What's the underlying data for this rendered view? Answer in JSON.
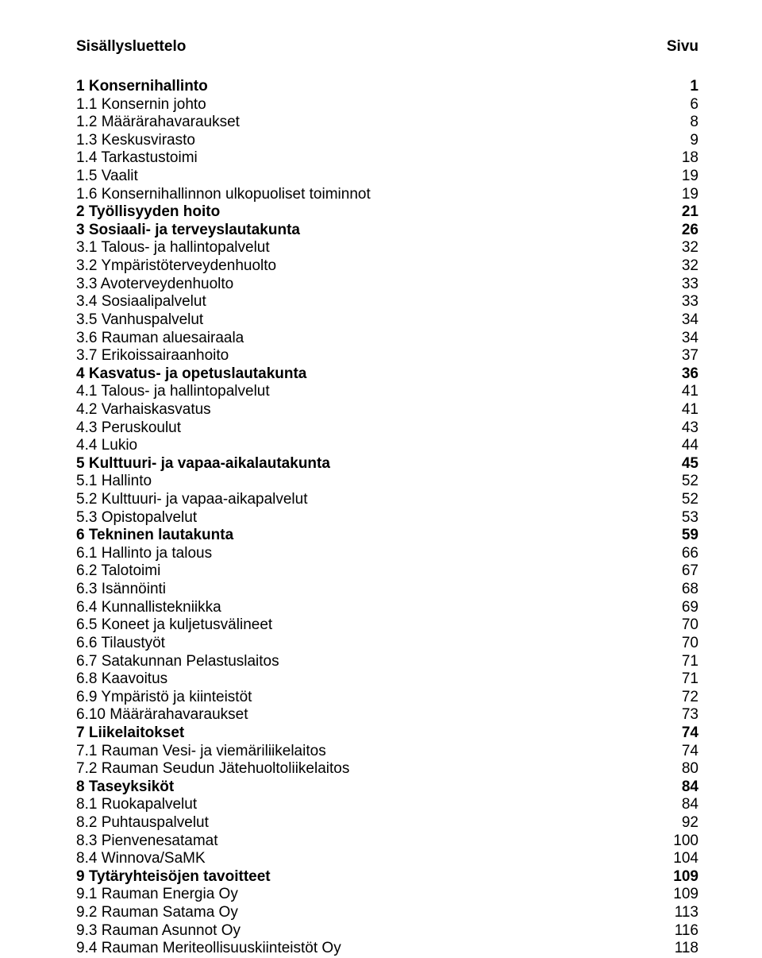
{
  "header": {
    "left": "Sisällysluettelo",
    "right": "Sivu"
  },
  "entries": [
    {
      "label": "1 Konsernihallinto",
      "page": "1",
      "bold": true
    },
    {
      "label": "1.1 Konsernin johto",
      "page": "6",
      "bold": false
    },
    {
      "label": "1.2 Määrärahavaraukset",
      "page": "8",
      "bold": false
    },
    {
      "label": "1.3 Keskusvirasto",
      "page": "9",
      "bold": false
    },
    {
      "label": "1.4 Tarkastustoimi",
      "page": "18",
      "bold": false
    },
    {
      "label": "1.5 Vaalit",
      "page": "19",
      "bold": false
    },
    {
      "label": "1.6 Konsernihallinnon ulkopuoliset toiminnot",
      "page": "19",
      "bold": false
    },
    {
      "label": "2 Työllisyyden hoito",
      "page": "21",
      "bold": true
    },
    {
      "label": "3 Sosiaali- ja terveyslautakunta",
      "page": "26",
      "bold": true
    },
    {
      "label": "3.1 Talous- ja hallintopalvelut",
      "page": "32",
      "bold": false
    },
    {
      "label": "3.2 Ympäristöterveydenhuolto",
      "page": "32",
      "bold": false
    },
    {
      "label": "3.3 Avoterveydenhuolto",
      "page": "33",
      "bold": false
    },
    {
      "label": "3.4 Sosiaalipalvelut",
      "page": "33",
      "bold": false
    },
    {
      "label": "3.5 Vanhuspalvelut",
      "page": "34",
      "bold": false
    },
    {
      "label": "3.6 Rauman aluesairaala",
      "page": "34",
      "bold": false
    },
    {
      "label": "3.7 Erikoissairaanhoito",
      "page": "37",
      "bold": false
    },
    {
      "label": "4 Kasvatus- ja opetuslautakunta",
      "page": "36",
      "bold": true
    },
    {
      "label": "4.1 Talous- ja hallintopalvelut",
      "page": "41",
      "bold": false
    },
    {
      "label": "4.2 Varhaiskasvatus",
      "page": "41",
      "bold": false
    },
    {
      "label": "4.3 Peruskoulut",
      "page": "43",
      "bold": false
    },
    {
      "label": "4.4 Lukio",
      "page": "44",
      "bold": false
    },
    {
      "label": "5 Kulttuuri- ja vapaa-aikalautakunta",
      "page": "45",
      "bold": true
    },
    {
      "label": "5.1 Hallinto",
      "page": "52",
      "bold": false
    },
    {
      "label": "5.2 Kulttuuri- ja vapaa-aikapalvelut",
      "page": "52",
      "bold": false
    },
    {
      "label": "5.3 Opistopalvelut",
      "page": "53",
      "bold": false
    },
    {
      "label": "6 Tekninen lautakunta",
      "page": "59",
      "bold": true
    },
    {
      "label": "6.1 Hallinto ja talous",
      "page": "66",
      "bold": false
    },
    {
      "label": "6.2 Talotoimi",
      "page": "67",
      "bold": false
    },
    {
      "label": "6.3 Isännöinti",
      "page": "68",
      "bold": false
    },
    {
      "label": "6.4 Kunnallistekniikka",
      "page": "69",
      "bold": false
    },
    {
      "label": "6.5 Koneet ja kuljetusvälineet",
      "page": "70",
      "bold": false
    },
    {
      "label": "6.6 Tilaustyöt",
      "page": "70",
      "bold": false
    },
    {
      "label": "6.7 Satakunnan Pelastuslaitos",
      "page": "71",
      "bold": false
    },
    {
      "label": "6.8 Kaavoitus",
      "page": "71",
      "bold": false
    },
    {
      "label": "6.9 Ympäristö ja kiinteistöt",
      "page": "72",
      "bold": false
    },
    {
      "label": "6.10 Määrärahavaraukset",
      "page": "73",
      "bold": false
    },
    {
      "label": "7 Liikelaitokset",
      "page": "74",
      "bold": true
    },
    {
      "label": "7.1 Rauman Vesi- ja viemäriliikelaitos",
      "page": "74",
      "bold": false
    },
    {
      "label": "7.2 Rauman Seudun Jätehuoltoliikelaitos",
      "page": "80",
      "bold": false
    },
    {
      "label": "8 Taseyksiköt",
      "page": "84",
      "bold": true
    },
    {
      "label": "8.1 Ruokapalvelut",
      "page": "84",
      "bold": false
    },
    {
      "label": "8.2 Puhtauspalvelut",
      "page": "92",
      "bold": false
    },
    {
      "label": "8.3 Pienvenesatamat",
      "page": "100",
      "bold": false
    },
    {
      "label": "8.4 Winnova/SaMK",
      "page": "104",
      "bold": false
    },
    {
      "label": "9 Tytäryhteisöjen tavoitteet",
      "page": "109",
      "bold": true
    },
    {
      "label": "9.1 Rauman Energia Oy",
      "page": "109",
      "bold": false
    },
    {
      "label": "9.2 Rauman Satama Oy",
      "page": "113",
      "bold": false
    },
    {
      "label": "9.3 Rauman Asunnot Oy",
      "page": "116",
      "bold": false
    },
    {
      "label": "9.4 Rauman Meriteollisuuskiinteistöt Oy",
      "page": "118",
      "bold": false
    }
  ]
}
